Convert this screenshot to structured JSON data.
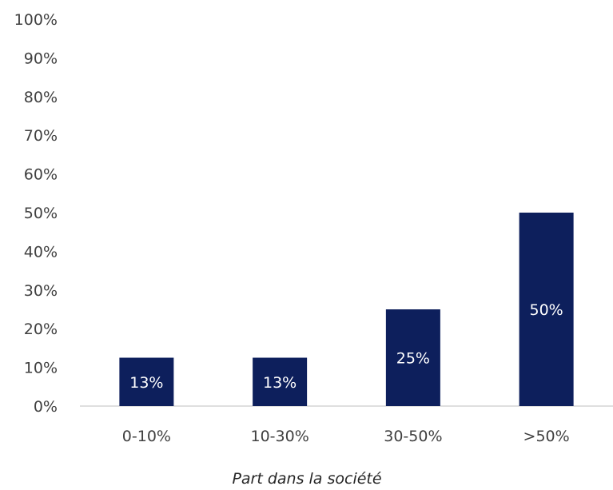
{
  "chart_data": {
    "type": "bar",
    "categories": [
      "0-10%",
      "10-30%",
      "30-50%",
      ">50%"
    ],
    "values": [
      12.5,
      12.5,
      25,
      50
    ],
    "data_labels": [
      "13%",
      "13%",
      "25%",
      "50%"
    ],
    "title": "",
    "xlabel": "Part dans la société",
    "ylabel": "",
    "ylim": [
      0,
      100
    ],
    "yticks": [
      0,
      10,
      20,
      30,
      40,
      50,
      60,
      70,
      80,
      90,
      100
    ],
    "ytick_labels": [
      "0%",
      "10%",
      "20%",
      "30%",
      "40%",
      "50%",
      "60%",
      "70%",
      "80%",
      "90%",
      "100%"
    ],
    "grid": false,
    "legend": "none",
    "bar_color": "#0D1F5C",
    "label_color": "#FFFFFF",
    "axis_color": "#BFBFBF",
    "text_color": "#404040"
  }
}
